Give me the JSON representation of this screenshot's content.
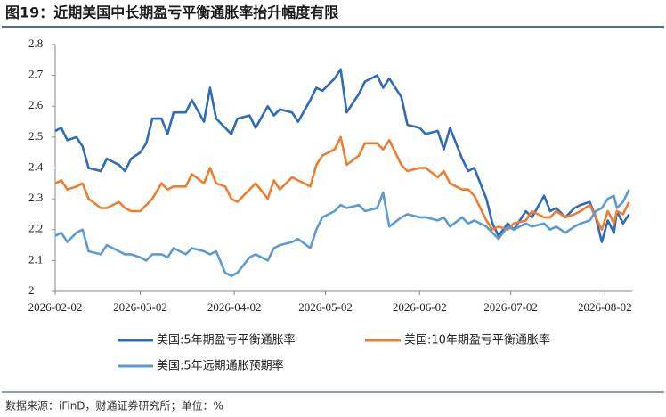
{
  "header": {
    "title": "图19：近期美国中长期盈亏平衡通胀率抬升幅度有限"
  },
  "chart_data": {
    "type": "line",
    "x": [
      "2026-02-02",
      "2026-02-04",
      "2026-02-06",
      "2026-02-09",
      "2026-02-11",
      "2026-02-13",
      "2026-02-17",
      "2026-02-19",
      "2026-02-23",
      "2026-02-25",
      "2026-02-27",
      "2026-03-02",
      "2026-03-04",
      "2026-03-06",
      "2026-03-09",
      "2026-03-11",
      "2026-03-13",
      "2026-03-17",
      "2026-03-19",
      "2026-03-23",
      "2026-03-25",
      "2026-03-27",
      "2026-03-30",
      "2026-04-01",
      "2026-04-03",
      "2026-04-07",
      "2026-04-09",
      "2026-04-13",
      "2026-04-15",
      "2026-04-17",
      "2026-04-21",
      "2026-04-23",
      "2026-04-27",
      "2026-04-29",
      "2026-05-01",
      "2026-05-05",
      "2026-05-07",
      "2026-05-09",
      "2026-05-13",
      "2026-05-15",
      "2026-05-19",
      "2026-05-21",
      "2026-05-23",
      "2026-05-27",
      "2026-05-29",
      "2026-06-02",
      "2026-06-04",
      "2026-06-08",
      "2026-06-10",
      "2026-06-12",
      "2026-06-16",
      "2026-06-18",
      "2026-06-20",
      "2026-06-24",
      "2026-06-26",
      "2026-06-28",
      "2026-07-01",
      "2026-07-03",
      "2026-07-07",
      "2026-07-09",
      "2026-07-13",
      "2026-07-15",
      "2026-07-17",
      "2026-07-20",
      "2026-07-23",
      "2026-07-25",
      "2026-07-28",
      "2026-07-30",
      "2026-08-01",
      "2026-08-03",
      "2026-08-05",
      "2026-08-06",
      "2026-08-08",
      "2026-08-10"
    ],
    "series": [
      {
        "name": "美国:5年期盈亏平衡通胀率",
        "color": "#2e6bb8",
        "values": [
          2.52,
          2.53,
          2.49,
          2.5,
          2.47,
          2.4,
          2.39,
          2.43,
          2.41,
          2.39,
          2.43,
          2.45,
          2.48,
          2.56,
          2.56,
          2.51,
          2.58,
          2.58,
          2.62,
          2.55,
          2.66,
          2.56,
          2.53,
          2.51,
          2.56,
          2.57,
          2.53,
          2.6,
          2.57,
          2.59,
          2.58,
          2.55,
          2.62,
          2.66,
          2.65,
          2.69,
          2.72,
          2.58,
          2.64,
          2.68,
          2.7,
          2.66,
          2.69,
          2.63,
          2.54,
          2.53,
          2.51,
          2.52,
          2.46,
          2.53,
          2.43,
          2.39,
          2.4,
          2.3,
          2.22,
          2.18,
          2.22,
          2.2,
          2.26,
          2.24,
          2.31,
          2.26,
          2.27,
          2.24,
          2.27,
          2.28,
          2.29,
          2.24,
          2.16,
          2.23,
          2.19,
          2.26,
          2.22,
          2.25
        ]
      },
      {
        "name": "美国:10年期盈亏平衡通胀率",
        "color": "#ed7d31",
        "values": [
          2.35,
          2.36,
          2.33,
          2.34,
          2.35,
          2.3,
          2.27,
          2.27,
          2.29,
          2.27,
          2.26,
          2.26,
          2.28,
          2.3,
          2.35,
          2.33,
          2.34,
          2.34,
          2.38,
          2.35,
          2.4,
          2.35,
          2.34,
          2.3,
          2.29,
          2.33,
          2.35,
          2.3,
          2.36,
          2.33,
          2.37,
          2.36,
          2.34,
          2.41,
          2.44,
          2.46,
          2.5,
          2.41,
          2.44,
          2.48,
          2.48,
          2.46,
          2.49,
          2.41,
          2.39,
          2.4,
          2.4,
          2.37,
          2.39,
          2.35,
          2.33,
          2.33,
          2.31,
          2.23,
          2.2,
          2.21,
          2.2,
          2.22,
          2.23,
          2.26,
          2.24,
          2.24,
          2.26,
          2.24,
          2.25,
          2.26,
          2.28,
          2.24,
          2.2,
          2.26,
          2.22,
          2.26,
          2.25,
          2.29
        ]
      },
      {
        "name": "美国:5年远期通胀预期率",
        "color": "#5b9bd5",
        "values": [
          2.18,
          2.19,
          2.16,
          2.19,
          2.2,
          2.13,
          2.12,
          2.15,
          2.13,
          2.12,
          2.12,
          2.11,
          2.1,
          2.12,
          2.12,
          2.11,
          2.14,
          2.12,
          2.14,
          2.13,
          2.12,
          2.13,
          2.06,
          2.05,
          2.06,
          2.11,
          2.12,
          2.1,
          2.14,
          2.15,
          2.16,
          2.17,
          2.14,
          2.2,
          2.24,
          2.26,
          2.28,
          2.27,
          2.28,
          2.26,
          2.27,
          2.32,
          2.21,
          2.24,
          2.25,
          2.24,
          2.24,
          2.23,
          2.24,
          2.21,
          2.24,
          2.22,
          2.23,
          2.21,
          2.19,
          2.17,
          2.21,
          2.2,
          2.22,
          2.21,
          2.22,
          2.2,
          2.21,
          2.19,
          2.21,
          2.22,
          2.23,
          2.26,
          2.27,
          2.3,
          2.31,
          2.27,
          2.29,
          2.33
        ]
      }
    ],
    "xlim": [
      "2026-02-02",
      "2026-08-11"
    ],
    "xticks": [
      "2026-02-02",
      "2026-03-02",
      "2026-04-02",
      "2026-05-02",
      "2026-06-02",
      "2026-07-02",
      "2026-08-02"
    ],
    "ylim": [
      2,
      2.8
    ],
    "yticks": [
      2,
      2.1,
      2.2,
      2.3,
      2.4,
      2.5,
      2.6,
      2.7,
      2.8
    ],
    "grid": false
  },
  "footer": {
    "source": "数据来源：iFinD，财通证券研究所；单位：%"
  }
}
